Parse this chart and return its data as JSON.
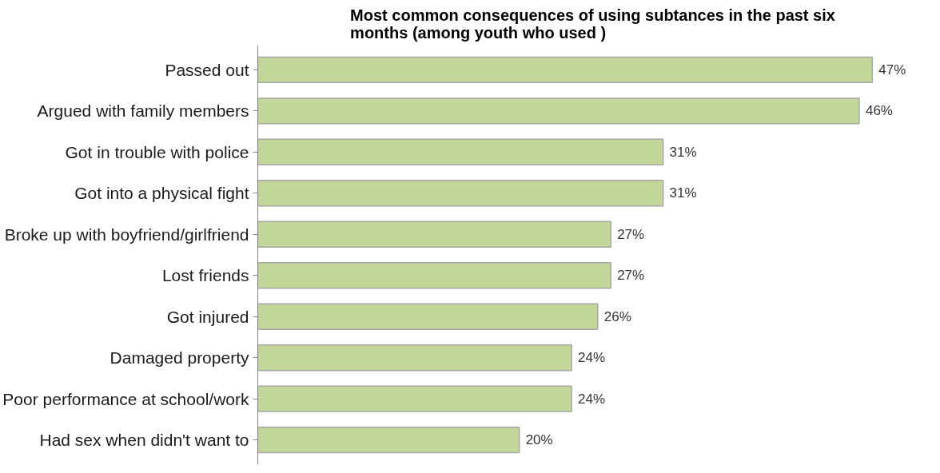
{
  "chart_data": {
    "type": "bar",
    "orientation": "horizontal",
    "title": "Most common consequences of using subtances in the past six months (among youth who used )",
    "categories": [
      "Passed out",
      "Argued with family members",
      "Got in trouble with police",
      "Got into a physical fight",
      "Broke up with boyfriend/girlfriend",
      "Lost friends",
      "Got injured",
      "Damaged property",
      "Poor performance at school/work",
      "Had sex when didn't want to"
    ],
    "values": [
      47,
      46,
      31,
      31,
      27,
      27,
      26,
      24,
      24,
      20
    ],
    "value_labels": [
      "47%",
      "46%",
      "31%",
      "31%",
      "27%",
      "27%",
      "26%",
      "24%",
      "24%",
      "20%"
    ],
    "color": "#c4d79b",
    "grid": false,
    "tick_labels": "y"
  }
}
